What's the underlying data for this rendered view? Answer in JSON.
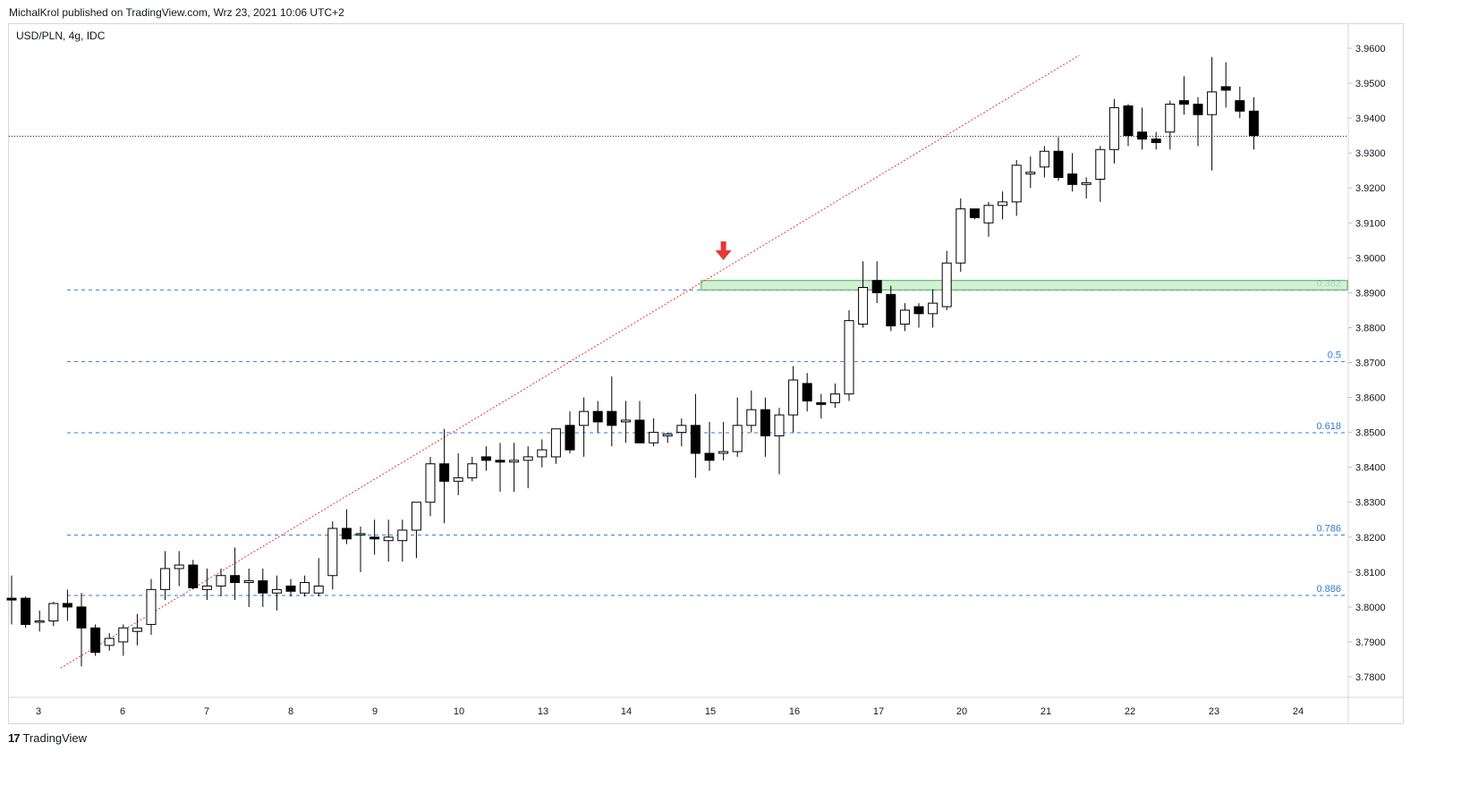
{
  "header": {
    "published": "MichalKrol published on TradingView.com, Wrz 23, 2021 10:06 UTC+2",
    "symbol": "USD/PLN, 4g, IDC"
  },
  "footer": {
    "brand": "TradingView",
    "logo_glyph": "17"
  },
  "colors": {
    "up_body": "#ffffff",
    "down_body": "#000000",
    "wick": "#000000",
    "fib": "#2f7bd8",
    "trend": "#e03a3a",
    "zone_fill": "#c8ecc9",
    "zone_stroke": "#4caf50",
    "arrow": "#e53935"
  },
  "chart_data": {
    "type": "candlestick",
    "yaxis": {
      "min": 3.775,
      "max": 3.965,
      "ticks": [
        "3.7800",
        "3.7900",
        "3.8000",
        "3.8100",
        "3.8200",
        "3.8300",
        "3.8400",
        "3.8500",
        "3.8600",
        "3.8700",
        "3.8800",
        "3.8900",
        "3.9000",
        "3.9100",
        "3.9200",
        "3.9300",
        "3.9400",
        "3.9500",
        "3.9600"
      ]
    },
    "xaxis": {
      "labels": [
        "3",
        "6",
        "7",
        "8",
        "9",
        "10",
        "13",
        "14",
        "15",
        "16",
        "17",
        "20",
        "21",
        "22",
        "23",
        "24"
      ]
    },
    "fib_levels": [
      {
        "label": "0.382",
        "value": 3.8908
      },
      {
        "label": "0.5",
        "value": 3.8703
      },
      {
        "label": "0.618",
        "value": 3.8499
      },
      {
        "label": "0.786",
        "value": 3.8206
      },
      {
        "label": "0.886",
        "value": 3.8033
      }
    ],
    "current_price": 3.9348,
    "trendline": {
      "start_index": 3.5,
      "start_price": 3.7825,
      "end_index": 76.5,
      "end_price": 3.958
    },
    "zone": {
      "start_index": 49.6,
      "end_index": 80,
      "low": 3.8908,
      "high": 3.8935
    },
    "arrow_index": 51,
    "candles": [
      [
        3.8025,
        3.809,
        3.795,
        3.802
      ],
      [
        3.8025,
        3.803,
        3.794,
        3.795
      ],
      [
        3.796,
        3.799,
        3.793,
        3.796
      ],
      [
        3.796,
        3.8015,
        3.7945,
        3.801
      ],
      [
        3.801,
        3.805,
        3.796,
        3.8
      ],
      [
        3.8,
        3.804,
        3.783,
        3.794
      ],
      [
        3.794,
        3.795,
        3.786,
        3.787
      ],
      [
        3.789,
        3.7925,
        3.7875,
        3.791
      ],
      [
        3.79,
        3.795,
        3.786,
        3.794
      ],
      [
        3.793,
        3.798,
        3.789,
        3.794
      ],
      [
        3.795,
        3.808,
        3.792,
        3.805
      ],
      [
        3.805,
        3.816,
        3.802,
        3.811
      ],
      [
        3.811,
        3.816,
        3.806,
        3.812
      ],
      [
        3.812,
        3.8135,
        3.805,
        3.8055
      ],
      [
        3.805,
        3.811,
        3.802,
        3.806
      ],
      [
        3.806,
        3.811,
        3.803,
        3.809
      ],
      [
        3.809,
        3.817,
        3.802,
        3.807
      ],
      [
        3.807,
        3.811,
        3.8,
        3.8075
      ],
      [
        3.8075,
        3.811,
        3.8,
        3.804
      ],
      [
        3.804,
        3.809,
        3.799,
        3.805
      ],
      [
        3.806,
        3.808,
        3.803,
        3.8045
      ],
      [
        3.804,
        3.809,
        3.803,
        3.807
      ],
      [
        3.804,
        3.814,
        3.803,
        3.806
      ],
      [
        3.809,
        3.8245,
        3.805,
        3.8225
      ],
      [
        3.8225,
        3.828,
        3.818,
        3.8195
      ],
      [
        3.821,
        3.823,
        3.81,
        3.821
      ],
      [
        3.82,
        3.825,
        3.815,
        3.8195
      ],
      [
        3.819,
        3.825,
        3.813,
        3.82
      ],
      [
        3.819,
        3.825,
        3.813,
        3.822
      ],
      [
        3.822,
        3.83,
        3.814,
        3.83
      ],
      [
        3.83,
        3.843,
        3.826,
        3.841
      ],
      [
        3.841,
        3.851,
        3.824,
        3.836
      ],
      [
        3.836,
        3.844,
        3.832,
        3.837
      ],
      [
        3.837,
        3.843,
        3.836,
        3.841
      ],
      [
        3.843,
        3.846,
        3.839,
        3.842
      ],
      [
        3.842,
        3.847,
        3.833,
        3.8415
      ],
      [
        3.8415,
        3.847,
        3.833,
        3.842
      ],
      [
        3.842,
        3.846,
        3.834,
        3.843
      ],
      [
        3.843,
        3.848,
        3.84,
        3.845
      ],
      [
        3.843,
        3.851,
        3.841,
        3.851
      ],
      [
        3.852,
        3.856,
        3.844,
        3.845
      ],
      [
        3.852,
        3.86,
        3.843,
        3.856
      ],
      [
        3.856,
        3.859,
        3.85,
        3.853
      ],
      [
        3.856,
        3.866,
        3.846,
        3.852
      ],
      [
        3.853,
        3.859,
        3.847,
        3.8535
      ],
      [
        3.8535,
        3.859,
        3.847,
        3.847
      ],
      [
        3.847,
        3.854,
        3.846,
        3.85
      ],
      [
        3.849,
        3.85,
        3.847,
        3.8495
      ],
      [
        3.85,
        3.854,
        3.846,
        3.852
      ],
      [
        3.852,
        3.861,
        3.837,
        3.844
      ],
      [
        3.844,
        3.853,
        3.839,
        3.842
      ],
      [
        3.844,
        3.853,
        3.842,
        3.8445
      ],
      [
        3.8445,
        3.86,
        3.843,
        3.852
      ],
      [
        3.852,
        3.862,
        3.85,
        3.8565
      ],
      [
        3.8565,
        3.86,
        3.843,
        3.849
      ],
      [
        3.849,
        3.857,
        3.838,
        3.855
      ],
      [
        3.855,
        3.869,
        3.85,
        3.865
      ],
      [
        3.864,
        3.867,
        3.856,
        3.859
      ],
      [
        3.8585,
        3.861,
        3.854,
        3.858
      ],
      [
        3.8585,
        3.864,
        3.857,
        3.861
      ],
      [
        3.861,
        3.885,
        3.859,
        3.882
      ],
      [
        3.881,
        3.899,
        3.88,
        3.8915
      ],
      [
        3.8935,
        3.899,
        3.887,
        3.89
      ],
      [
        3.8895,
        3.892,
        3.879,
        3.8805
      ],
      [
        3.881,
        3.887,
        3.879,
        3.885
      ],
      [
        3.886,
        3.887,
        3.88,
        3.884
      ],
      [
        3.884,
        3.891,
        3.88,
        3.887
      ],
      [
        3.886,
        3.902,
        3.885,
        3.8985
      ],
      [
        3.8985,
        3.917,
        3.896,
        3.914
      ],
      [
        3.914,
        3.914,
        3.911,
        3.9115
      ],
      [
        3.91,
        3.916,
        3.906,
        3.915
      ],
      [
        3.915,
        3.919,
        3.911,
        3.916
      ],
      [
        3.916,
        3.928,
        3.912,
        3.9265
      ],
      [
        3.924,
        3.929,
        3.92,
        3.9245
      ],
      [
        3.926,
        3.932,
        3.923,
        3.9305
      ],
      [
        3.9305,
        3.9345,
        3.922,
        3.923
      ],
      [
        3.924,
        3.93,
        3.919,
        3.921
      ],
      [
        3.921,
        3.923,
        3.917,
        3.9215
      ],
      [
        3.9225,
        3.932,
        3.916,
        3.931
      ],
      [
        3.931,
        3.9455,
        3.927,
        3.943
      ],
      [
        3.9435,
        3.944,
        3.932,
        3.935
      ],
      [
        3.936,
        3.943,
        3.931,
        3.934
      ],
      [
        3.934,
        3.936,
        3.931,
        3.933
      ],
      [
        3.936,
        3.945,
        3.931,
        3.944
      ],
      [
        3.945,
        3.952,
        3.941,
        3.944
      ],
      [
        3.944,
        3.946,
        3.932,
        3.941
      ],
      [
        3.941,
        3.9575,
        3.925,
        3.9475
      ],
      [
        3.949,
        3.956,
        3.943,
        3.948
      ],
      [
        3.945,
        3.949,
        3.94,
        3.942
      ],
      [
        3.942,
        3.946,
        3.931,
        3.935
      ]
    ]
  }
}
